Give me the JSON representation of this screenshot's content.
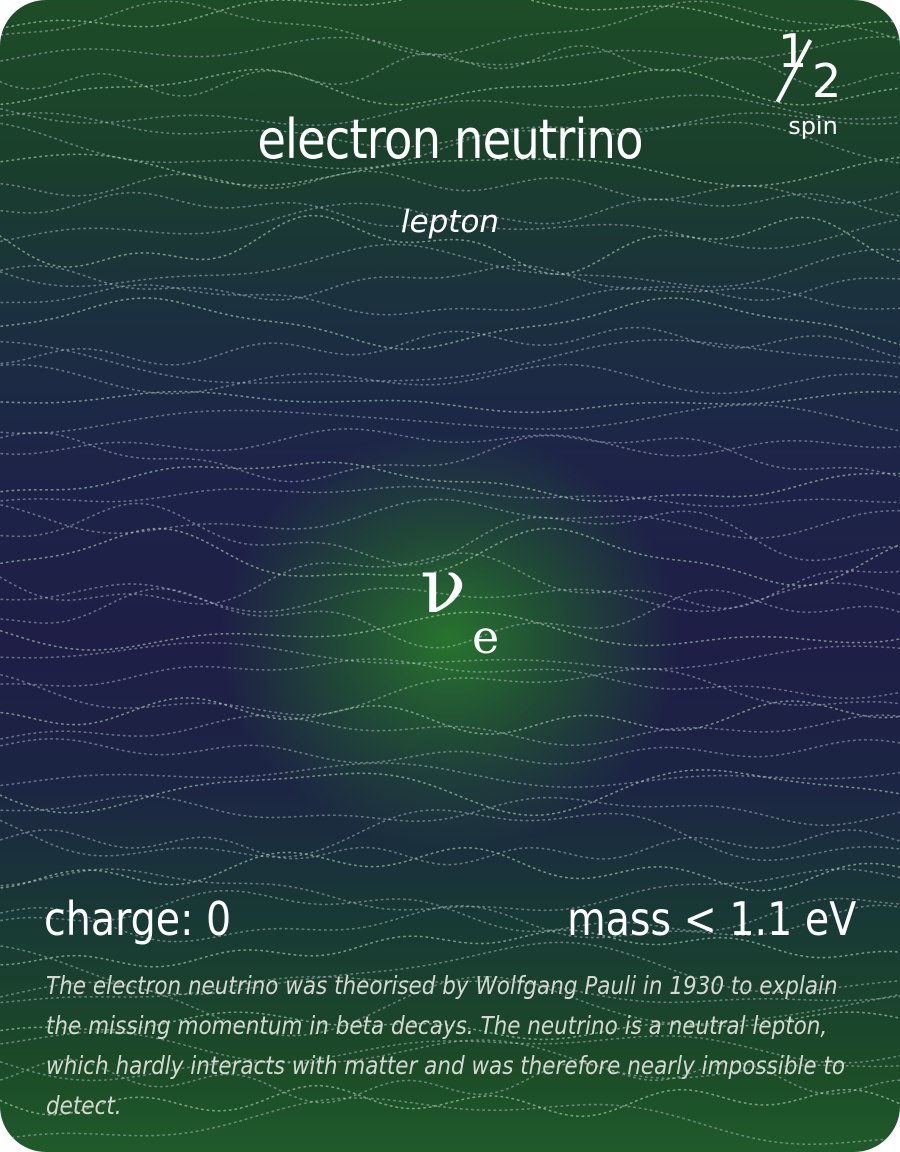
{
  "card": {
    "title": "electron neutrino",
    "category": "lepton",
    "spin": {
      "numerator": "1",
      "denominator": "2",
      "label": "spin"
    },
    "symbol": {
      "main": "ν",
      "subscript": "e"
    },
    "charge": "charge: 0",
    "mass": "mass < 1.1 eV",
    "description": "The electron neutrino was theorised by Wolfgang Pauli in 1930 to explain the missing momentum in beta decays. The neutrino is a neutral lepton, which hardly interacts with matter and was therefore nearly impossible to detect."
  },
  "colors": {
    "top_green": "#1d4d27",
    "middle_navy": "#1e1e46",
    "center_glow": "#28782d",
    "text": "#ffffff"
  }
}
